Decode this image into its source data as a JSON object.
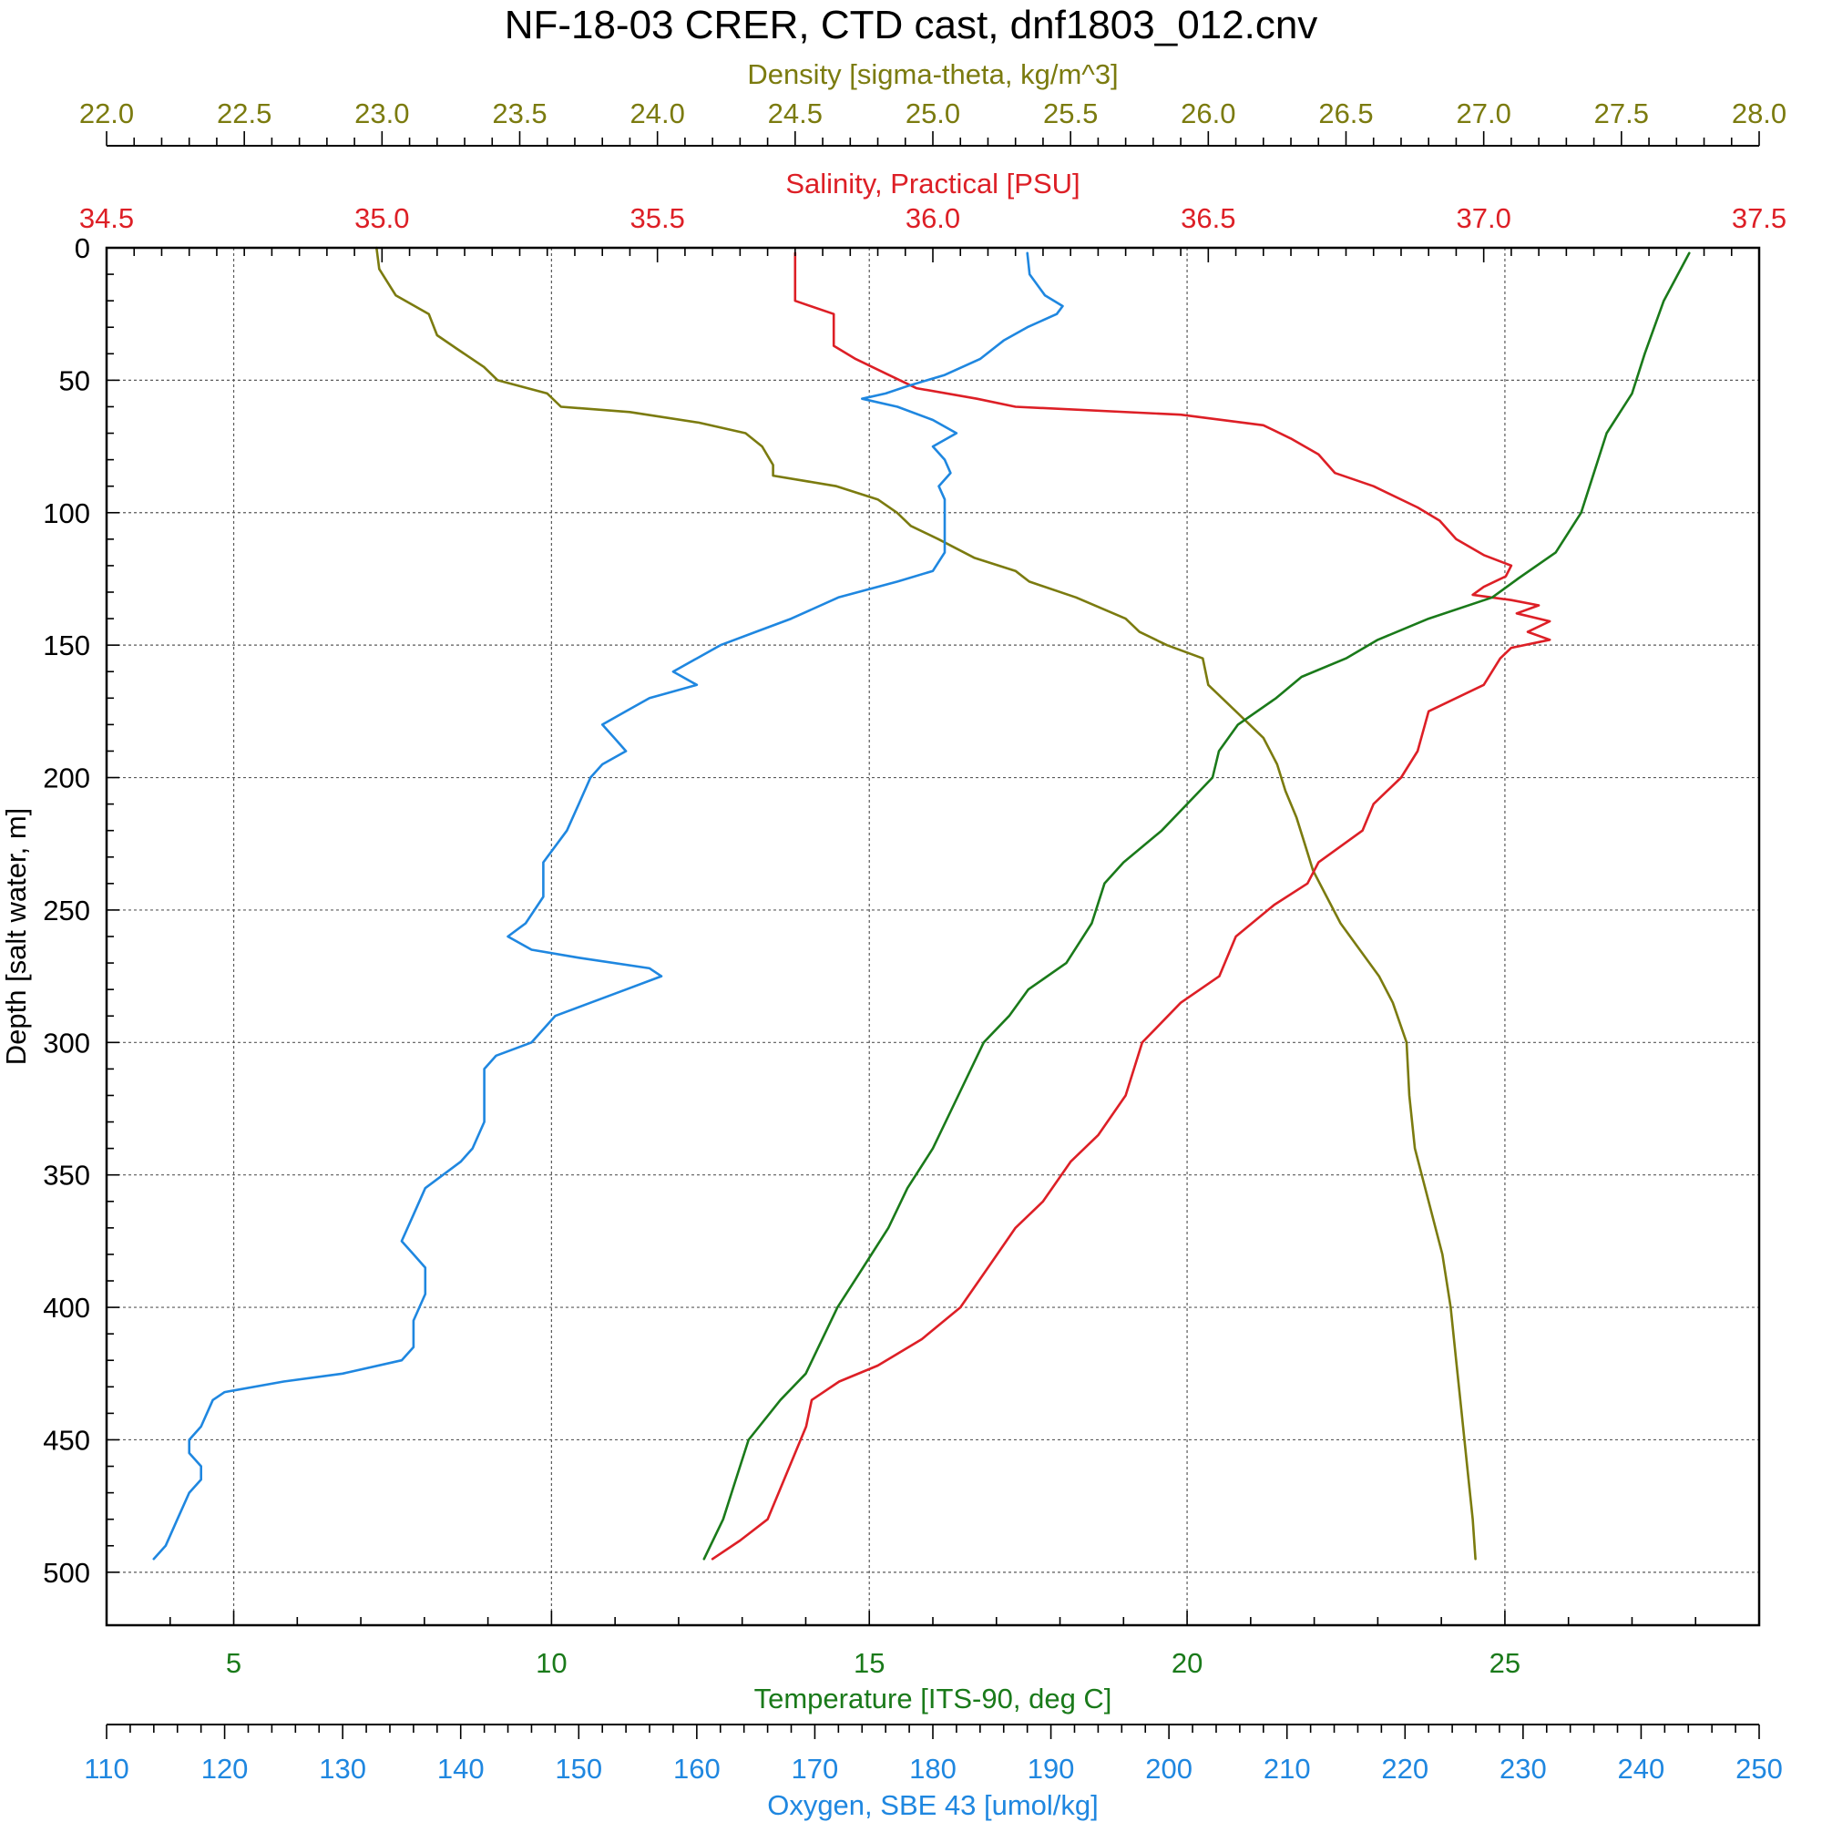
{
  "chart_data": {
    "type": "line",
    "title": "NF-18-03 CRER, CTD cast, dnf1803_012.cnv",
    "y_axis": {
      "label": "Depth [salt water, m]",
      "range": [
        0,
        520
      ],
      "ticks": [
        0,
        50,
        100,
        150,
        200,
        250,
        300,
        350,
        400,
        450,
        500
      ],
      "inverted": true,
      "color": "#000000"
    },
    "x_axes": [
      {
        "key": "density",
        "label": "Density [sigma-theta, kg/m^3]",
        "range": [
          22.0,
          28.0
        ],
        "ticks": [
          "22.0",
          "22.5",
          "23.0",
          "23.5",
          "24.0",
          "24.5",
          "25.0",
          "25.5",
          "26.0",
          "26.5",
          "27.0",
          "27.5",
          "28.0"
        ],
        "position": "top-outer",
        "color": "#7b7b0f"
      },
      {
        "key": "salinity",
        "label": "Salinity, Practical [PSU]",
        "range": [
          34.5,
          37.5
        ],
        "ticks": [
          "34.5",
          "35.0",
          "35.5",
          "36.0",
          "36.5",
          "37.0",
          "37.5"
        ],
        "position": "top-inner",
        "color": "#dd1f26"
      },
      {
        "key": "temperature",
        "label": "Temperature [ITS-90, deg C]",
        "range": [
          3,
          29
        ],
        "ticks": [
          "5",
          "10",
          "15",
          "20",
          "25"
        ],
        "position": "bottom-inner",
        "color": "#1a7a1a"
      },
      {
        "key": "oxygen",
        "label": "Oxygen, SBE 43 [umol/kg]",
        "range": [
          110,
          250
        ],
        "ticks": [
          "110",
          "120",
          "130",
          "140",
          "150",
          "160",
          "170",
          "180",
          "190",
          "200",
          "210",
          "220",
          "230",
          "240",
          "250"
        ],
        "position": "bottom-outer",
        "color": "#1f87e0"
      }
    ],
    "grid": true,
    "series": [
      {
        "name": "Density [sigma-theta, kg/m^3]",
        "axis": "density",
        "color": "#7b7b0f",
        "points": [
          [
            0,
            22.98
          ],
          [
            8,
            22.99
          ],
          [
            18,
            23.05
          ],
          [
            25,
            23.17
          ],
          [
            33,
            23.2
          ],
          [
            38,
            23.27
          ],
          [
            45,
            23.37
          ],
          [
            50,
            23.42
          ],
          [
            55,
            23.6
          ],
          [
            60,
            23.65
          ],
          [
            62,
            23.9
          ],
          [
            66,
            24.15
          ],
          [
            70,
            24.32
          ],
          [
            75,
            24.38
          ],
          [
            82,
            24.42
          ],
          [
            86,
            24.42
          ],
          [
            90,
            24.65
          ],
          [
            95,
            24.8
          ],
          [
            100,
            24.87
          ],
          [
            105,
            24.92
          ],
          [
            110,
            25.02
          ],
          [
            117,
            25.15
          ],
          [
            122,
            25.3
          ],
          [
            126,
            25.35
          ],
          [
            132,
            25.52
          ],
          [
            140,
            25.7
          ],
          [
            145,
            25.75
          ],
          [
            150,
            25.85
          ],
          [
            155,
            25.98
          ],
          [
            165,
            26.0
          ],
          [
            175,
            26.1
          ],
          [
            185,
            26.2
          ],
          [
            195,
            26.25
          ],
          [
            205,
            26.28
          ],
          [
            215,
            26.32
          ],
          [
            225,
            26.35
          ],
          [
            235,
            26.38
          ],
          [
            245,
            26.43
          ],
          [
            255,
            26.48
          ],
          [
            265,
            26.55
          ],
          [
            275,
            26.62
          ],
          [
            285,
            26.67
          ],
          [
            300,
            26.72
          ],
          [
            320,
            26.73
          ],
          [
            340,
            26.75
          ],
          [
            360,
            26.8
          ],
          [
            380,
            26.85
          ],
          [
            400,
            26.88
          ],
          [
            420,
            26.9
          ],
          [
            440,
            26.92
          ],
          [
            460,
            26.94
          ],
          [
            480,
            26.96
          ],
          [
            495,
            26.97
          ]
        ]
      },
      {
        "name": "Salinity, Practical [PSU]",
        "axis": "salinity",
        "color": "#dd1f26",
        "points": [
          [
            2,
            35.75
          ],
          [
            10,
            35.75
          ],
          [
            20,
            35.75
          ],
          [
            25,
            35.82
          ],
          [
            30,
            35.82
          ],
          [
            37,
            35.82
          ],
          [
            42,
            35.86
          ],
          [
            48,
            35.92
          ],
          [
            53,
            35.97
          ],
          [
            57,
            36.08
          ],
          [
            60,
            36.15
          ],
          [
            63,
            36.45
          ],
          [
            67,
            36.6
          ],
          [
            72,
            36.65
          ],
          [
            78,
            36.7
          ],
          [
            85,
            36.73
          ],
          [
            90,
            36.8
          ],
          [
            98,
            36.88
          ],
          [
            103,
            36.92
          ],
          [
            110,
            36.95
          ],
          [
            116,
            37.0
          ],
          [
            120,
            37.05
          ],
          [
            124,
            37.04
          ],
          [
            128,
            37.0
          ],
          [
            131,
            36.98
          ],
          [
            133,
            37.05
          ],
          [
            135,
            37.1
          ],
          [
            138,
            37.06
          ],
          [
            141,
            37.12
          ],
          [
            145,
            37.08
          ],
          [
            148,
            37.12
          ],
          [
            151,
            37.05
          ],
          [
            155,
            37.03
          ],
          [
            165,
            37.0
          ],
          [
            175,
            36.9
          ],
          [
            190,
            36.88
          ],
          [
            200,
            36.85
          ],
          [
            210,
            36.8
          ],
          [
            220,
            36.78
          ],
          [
            232,
            36.7
          ],
          [
            240,
            36.68
          ],
          [
            248,
            36.62
          ],
          [
            260,
            36.55
          ],
          [
            275,
            36.52
          ],
          [
            285,
            36.45
          ],
          [
            300,
            36.38
          ],
          [
            320,
            36.35
          ],
          [
            335,
            36.3
          ],
          [
            345,
            36.25
          ],
          [
            360,
            36.2
          ],
          [
            370,
            36.15
          ],
          [
            385,
            36.1
          ],
          [
            400,
            36.05
          ],
          [
            412,
            35.98
          ],
          [
            422,
            35.9
          ],
          [
            428,
            35.83
          ],
          [
            435,
            35.78
          ],
          [
            445,
            35.77
          ],
          [
            455,
            35.75
          ],
          [
            470,
            35.72
          ],
          [
            480,
            35.7
          ],
          [
            488,
            35.65
          ],
          [
            495,
            35.6
          ]
        ]
      },
      {
        "name": "Temperature [ITS-90, deg C]",
        "axis": "temperature",
        "color": "#1a7a1a",
        "points": [
          [
            2,
            27.9
          ],
          [
            20,
            27.5
          ],
          [
            40,
            27.2
          ],
          [
            55,
            27.0
          ],
          [
            70,
            26.6
          ],
          [
            85,
            26.4
          ],
          [
            100,
            26.2
          ],
          [
            115,
            25.8
          ],
          [
            125,
            25.2
          ],
          [
            132,
            24.8
          ],
          [
            140,
            23.8
          ],
          [
            148,
            23.0
          ],
          [
            155,
            22.5
          ],
          [
            162,
            21.8
          ],
          [
            170,
            21.4
          ],
          [
            180,
            20.8
          ],
          [
            190,
            20.5
          ],
          [
            200,
            20.4
          ],
          [
            210,
            20.0
          ],
          [
            220,
            19.6
          ],
          [
            232,
            19.0
          ],
          [
            240,
            18.7
          ],
          [
            255,
            18.5
          ],
          [
            270,
            18.1
          ],
          [
            280,
            17.5
          ],
          [
            290,
            17.2
          ],
          [
            300,
            16.8
          ],
          [
            320,
            16.4
          ],
          [
            340,
            16.0
          ],
          [
            355,
            15.6
          ],
          [
            370,
            15.3
          ],
          [
            385,
            14.9
          ],
          [
            400,
            14.5
          ],
          [
            415,
            14.2
          ],
          [
            425,
            14.0
          ],
          [
            435,
            13.6
          ],
          [
            450,
            13.1
          ],
          [
            465,
            12.9
          ],
          [
            480,
            12.7
          ],
          [
            495,
            12.4
          ]
        ]
      },
      {
        "name": "Oxygen, SBE 43 [umol/kg]",
        "axis": "oxygen",
        "color": "#1f87e0",
        "points": [
          [
            2,
            188
          ],
          [
            10,
            188.2
          ],
          [
            18,
            189.5
          ],
          [
            22,
            191
          ],
          [
            25,
            190.5
          ],
          [
            30,
            188
          ],
          [
            35,
            186
          ],
          [
            42,
            184
          ],
          [
            48,
            181
          ],
          [
            52,
            178
          ],
          [
            55,
            176
          ],
          [
            57,
            174
          ],
          [
            60,
            177
          ],
          [
            65,
            180
          ],
          [
            70,
            182
          ],
          [
            75,
            180
          ],
          [
            80,
            181
          ],
          [
            85,
            181.5
          ],
          [
            90,
            180.5
          ],
          [
            95,
            181
          ],
          [
            105,
            181
          ],
          [
            115,
            181
          ],
          [
            122,
            180
          ],
          [
            126,
            177
          ],
          [
            132,
            172
          ],
          [
            140,
            168
          ],
          [
            145,
            165
          ],
          [
            150,
            162
          ],
          [
            155,
            160
          ],
          [
            160,
            158
          ],
          [
            165,
            160
          ],
          [
            170,
            156
          ],
          [
            175,
            154
          ],
          [
            180,
            152
          ],
          [
            185,
            153
          ],
          [
            190,
            154
          ],
          [
            195,
            152
          ],
          [
            200,
            151
          ],
          [
            210,
            150
          ],
          [
            220,
            149
          ],
          [
            232,
            147
          ],
          [
            245,
            147
          ],
          [
            255,
            145.5
          ],
          [
            260,
            144
          ],
          [
            265,
            146
          ],
          [
            268,
            150
          ],
          [
            272,
            156
          ],
          [
            275,
            157
          ],
          [
            280,
            154
          ],
          [
            285,
            151
          ],
          [
            290,
            148
          ],
          [
            295,
            147
          ],
          [
            300,
            146
          ],
          [
            305,
            143
          ],
          [
            310,
            142
          ],
          [
            320,
            142
          ],
          [
            330,
            142
          ],
          [
            340,
            141
          ],
          [
            345,
            140
          ],
          [
            355,
            137
          ],
          [
            365,
            136
          ],
          [
            375,
            135
          ],
          [
            380,
            136
          ],
          [
            385,
            137
          ],
          [
            395,
            137
          ],
          [
            405,
            136
          ],
          [
            415,
            136
          ],
          [
            420,
            135
          ],
          [
            425,
            130
          ],
          [
            428,
            125
          ],
          [
            432,
            120
          ],
          [
            435,
            119
          ],
          [
            445,
            118
          ],
          [
            450,
            117
          ],
          [
            455,
            117
          ],
          [
            460,
            118
          ],
          [
            465,
            118
          ],
          [
            470,
            117
          ],
          [
            480,
            116
          ],
          [
            490,
            115
          ],
          [
            495,
            114
          ]
        ]
      }
    ]
  }
}
